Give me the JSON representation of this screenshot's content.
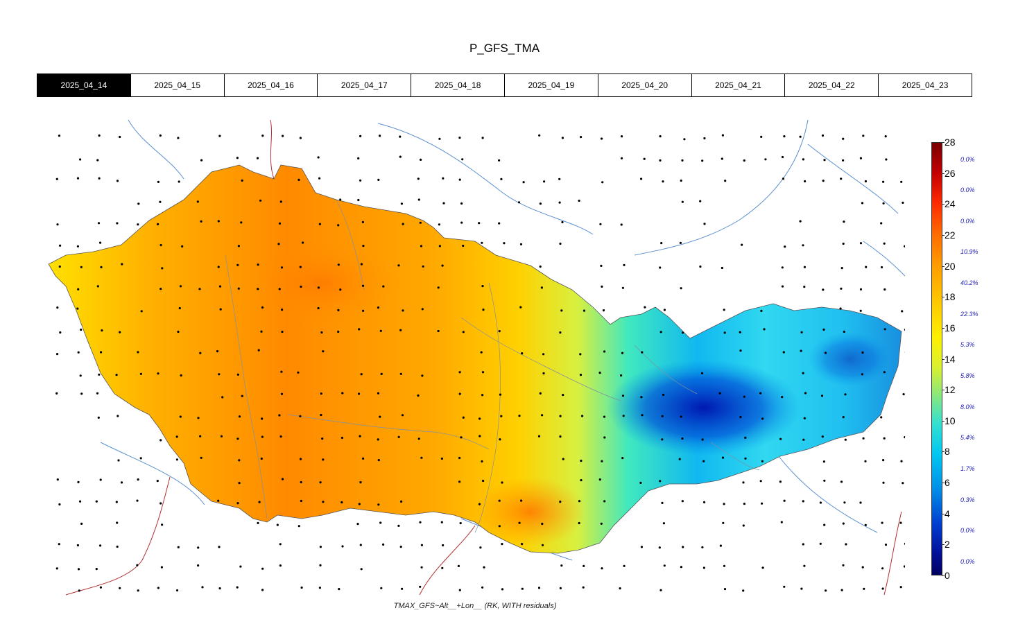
{
  "title": "P_GFS_TMA",
  "tabs": [
    {
      "label": "2025_04_14",
      "active": true
    },
    {
      "label": "2025_04_15",
      "active": false
    },
    {
      "label": "2025_04_16",
      "active": false
    },
    {
      "label": "2025_04_17",
      "active": false
    },
    {
      "label": "2025_04_18",
      "active": false
    },
    {
      "label": "2025_04_19",
      "active": false
    },
    {
      "label": "2025_04_20",
      "active": false
    },
    {
      "label": "2025_04_21",
      "active": false
    },
    {
      "label": "2025_04_22",
      "active": false
    },
    {
      "label": "2025_04_23",
      "active": false
    }
  ],
  "legend": {
    "ticks": [
      "28",
      "26",
      "24",
      "22",
      "20",
      "18",
      "16",
      "14",
      "12",
      "10",
      "8",
      "6",
      "4",
      "2",
      "0"
    ],
    "percentages": [
      "0.0%",
      "0.0%",
      "0.0%",
      "10.9%",
      "40.2%",
      "22.3%",
      "5.3%",
      "5.8%",
      "8.0%",
      "5.4%",
      "1.7%",
      "0.3%",
      "0.0%",
      "0.0%"
    ]
  },
  "caption": "TMAX_GFS~Alt__+Lon__ (RK, WITH residuals)",
  "colors": {
    "warm": "#ff8a00",
    "mid": "#ffd800",
    "cool": "#00d8f0",
    "cold": "#0030c0"
  }
}
